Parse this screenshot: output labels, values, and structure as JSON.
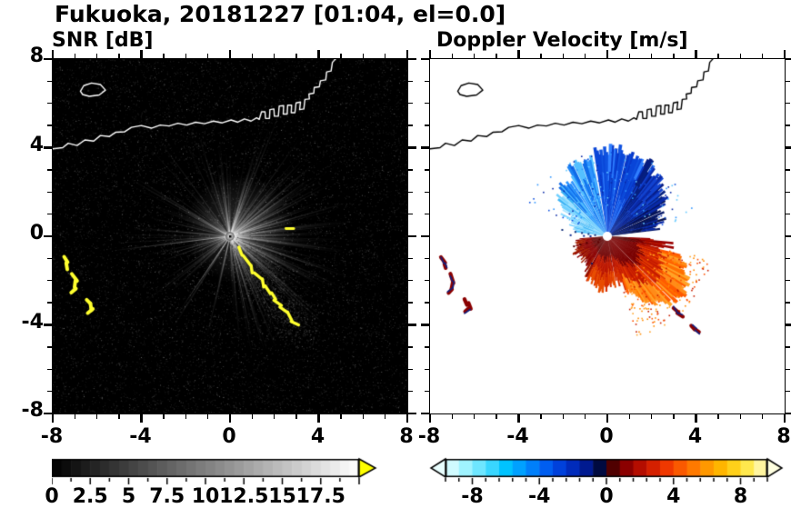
{
  "title": "Fukuoka, 20181227 [01:04, el=0.0]",
  "station": "Fukuoka",
  "date": "20181227",
  "time": "01:04",
  "elevation": "el=0.0",
  "chart_data": [
    {
      "type": "heatmap",
      "id": "snr",
      "title": "SNR [dB]",
      "xlim": [
        -8,
        8
      ],
      "ylim": [
        -8,
        8
      ],
      "xticks": [
        -8,
        -4,
        0,
        4,
        8
      ],
      "yticks": [
        -8,
        -4,
        0,
        4,
        8
      ],
      "xtick_labels": [
        "-8",
        "-4",
        "0",
        "4",
        "8"
      ],
      "ytick_labels": [
        "-8",
        "-4",
        "0",
        "4",
        "8"
      ],
      "minor_tick_step": 1,
      "grid": false,
      "background": "#000000",
      "colorbar": {
        "position": "bottom",
        "range": [
          0,
          20
        ],
        "ticks": [
          0,
          2.5,
          5,
          7.5,
          10,
          12.5,
          15,
          17.5
        ],
        "labels": [
          "0",
          "2.5",
          "5",
          "7.5",
          "10",
          "12.5",
          "15",
          "17.5"
        ],
        "colormap": "grayscale black to white, discrete segments",
        "over_arrow_color": "#ffff00"
      },
      "features": [
        {
          "name": "radar-site",
          "x": 0,
          "y": 0,
          "note": "bright core with faint gray radial beams out to ~6 in all azimuths, densest toward E/NE/SE"
        },
        {
          "name": "high-snr-arc",
          "note": "bright yellow jagged arc from (0.3,-0.6) to (3.1,-4.1)"
        },
        {
          "name": "high-snr-segment-east",
          "note": "small yellow dash near (2.7,0.35)"
        },
        {
          "name": "high-snr-cluster-west",
          "note": "yellow arc segments near (-7.4,-1.2), (-7.0,-2.2), (-6.3,-3.2)"
        },
        {
          "name": "coastline",
          "note": "white coastline across top, harbor structures near x=1.5..4.5, island near (-6.3,6.6)"
        }
      ]
    },
    {
      "type": "heatmap",
      "id": "doppler",
      "title": "Doppler Velocity [m/s]",
      "xlim": [
        -8,
        8
      ],
      "ylim": [
        -8,
        8
      ],
      "xticks": [
        -8,
        -4,
        0,
        4,
        8
      ],
      "yticks": [
        -8,
        -4,
        0,
        4,
        8
      ],
      "xtick_labels": [
        "-8",
        "-4",
        "0",
        "4",
        "8"
      ],
      "ytick_labels": [
        "-8",
        "-4",
        "0",
        "4",
        "8"
      ],
      "minor_tick_step": 1,
      "grid": false,
      "background": "#ffffff",
      "colorbar": {
        "position": "bottom",
        "range": [
          -9.6,
          9.6
        ],
        "ticks": [
          -8,
          -4,
          0,
          4,
          8
        ],
        "labels": [
          "-8",
          "-4",
          "0",
          "4",
          "8"
        ],
        "colormap": "cyan-blue-navy(negative) to darkred-red-orange-yellow(positive), discrete segments",
        "under_arrow_color": "#eaffff",
        "over_arrow_color": "#ffffe0",
        "stops": [
          [
            -9.6,
            "#e8ffff"
          ],
          [
            -8.4,
            "#9ff3ff"
          ],
          [
            -7.2,
            "#55e0ff"
          ],
          [
            -6.0,
            "#00c3ff"
          ],
          [
            -4.8,
            "#0090ff"
          ],
          [
            -3.6,
            "#005ef0"
          ],
          [
            -2.4,
            "#0033d0"
          ],
          [
            -1.2,
            "#001a90"
          ],
          [
            -0.4,
            "#000a40"
          ],
          [
            0,
            "#1a0000"
          ],
          [
            0.4,
            "#500000"
          ],
          [
            1.2,
            "#8b0000"
          ],
          [
            2.4,
            "#c81400"
          ],
          [
            3.6,
            "#f03800"
          ],
          [
            4.8,
            "#ff6a00"
          ],
          [
            6.0,
            "#ff9800"
          ],
          [
            7.2,
            "#ffc400"
          ],
          [
            8.4,
            "#ffe84d"
          ],
          [
            9.6,
            "#fffbc8"
          ]
        ]
      },
      "features": [
        {
          "name": "negative-velocity-fan",
          "note": "blue/cyan wedges north of radar, light cyan NW, bright blue N, dark navy NE, radius up to ~3.6"
        },
        {
          "name": "positive-velocity-fan",
          "note": "dark red/red/orange wedges S-SE of radar, longest lobe toward SE up to ~4.2, orange speckles beyond"
        },
        {
          "name": "echo-cluster-west",
          "note": "dark red/navy arc segments near (-7.4,-1.2), (-7.0,-2.2), (-6.3,-3.2)"
        },
        {
          "name": "echo-blobs-southeast",
          "note": "dark red/navy blobs near (3.2,-3.4) and (4.0,-4.2)"
        },
        {
          "name": "radar-site",
          "x": 0,
          "y": 0,
          "note": "white gap at center"
        },
        {
          "name": "coastline",
          "note": "black coastline across top, same shape as left panel"
        }
      ]
    }
  ]
}
